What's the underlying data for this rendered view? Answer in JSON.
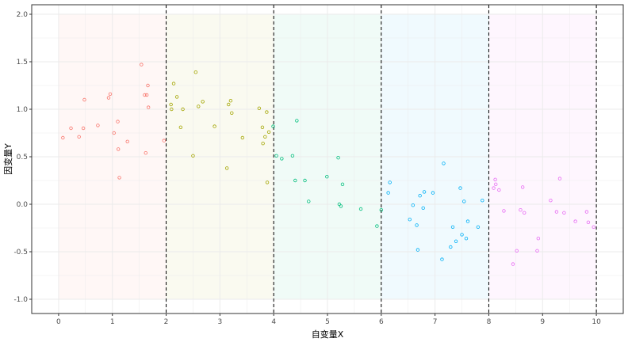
{
  "chart_data": {
    "type": "scatter",
    "title": "",
    "xlabel": "自变量X",
    "ylabel": "因变量Y",
    "xlim": [
      -0.5,
      10.5
    ],
    "ylim": [
      -1.15,
      2.1
    ],
    "x_ticks": [
      0,
      1,
      2,
      3,
      4,
      5,
      6,
      7,
      8,
      9,
      10
    ],
    "y_ticks": [
      -1.0,
      -0.5,
      0.0,
      0.5,
      1.0,
      1.5,
      2.0
    ],
    "y_tick_labels": [
      "-1.0",
      "-0.5",
      "0.0",
      "0.5",
      "1.0",
      "1.5",
      "2.0"
    ],
    "grid": true,
    "legend": "none",
    "vertical_dashed_lines": [
      2,
      4,
      6,
      8,
      10
    ],
    "region_fill_range_y": [
      -1,
      2
    ],
    "regions": [
      {
        "x_range": [
          0,
          2
        ],
        "color": "#F8766D"
      },
      {
        "x_range": [
          2,
          4
        ],
        "color": "#A3A500"
      },
      {
        "x_range": [
          4,
          6
        ],
        "color": "#00BF7D"
      },
      {
        "x_range": [
          6,
          8
        ],
        "color": "#00B0F6"
      },
      {
        "x_range": [
          8,
          10
        ],
        "color": "#E76BF3"
      }
    ],
    "series": [
      {
        "color": "#F8766D",
        "points": [
          [
            0.08,
            0.7
          ],
          [
            0.23,
            0.8
          ],
          [
            0.38,
            0.71
          ],
          [
            0.46,
            0.8
          ],
          [
            0.48,
            1.1
          ],
          [
            0.73,
            0.83
          ],
          [
            0.93,
            1.12
          ],
          [
            0.96,
            1.16
          ],
          [
            1.03,
            0.75
          ],
          [
            1.1,
            0.87
          ],
          [
            1.11,
            0.58
          ],
          [
            1.13,
            0.28
          ],
          [
            1.28,
            0.66
          ],
          [
            1.54,
            1.47
          ],
          [
            1.6,
            1.15
          ],
          [
            1.62,
            0.54
          ],
          [
            1.64,
            1.15
          ],
          [
            1.66,
            1.25
          ],
          [
            1.67,
            1.02
          ],
          [
            1.96,
            0.67
          ]
        ]
      },
      {
        "color": "#A3A500",
        "points": [
          [
            2.09,
            1.05
          ],
          [
            2.1,
            1.0
          ],
          [
            2.14,
            1.27
          ],
          [
            2.2,
            1.13
          ],
          [
            2.27,
            0.81
          ],
          [
            2.31,
            1.0
          ],
          [
            2.5,
            0.51
          ],
          [
            2.55,
            1.39
          ],
          [
            2.6,
            1.03
          ],
          [
            2.68,
            1.08
          ],
          [
            2.9,
            0.82
          ],
          [
            3.13,
            0.38
          ],
          [
            3.16,
            1.05
          ],
          [
            3.2,
            1.09
          ],
          [
            3.22,
            0.96
          ],
          [
            3.42,
            0.7
          ],
          [
            3.73,
            1.01
          ],
          [
            3.79,
            0.81
          ],
          [
            3.8,
            0.64
          ],
          [
            3.84,
            0.71
          ],
          [
            3.87,
            0.97
          ],
          [
            3.88,
            0.23
          ],
          [
            3.91,
            0.76
          ]
        ]
      },
      {
        "color": "#00BF7D",
        "points": [
          [
            3.99,
            0.82
          ],
          [
            4.05,
            0.51
          ],
          [
            4.15,
            0.48
          ],
          [
            4.35,
            0.51
          ],
          [
            4.4,
            0.25
          ],
          [
            4.43,
            0.88
          ],
          [
            4.58,
            0.25
          ],
          [
            4.65,
            0.03
          ],
          [
            4.99,
            0.29
          ],
          [
            5.2,
            0.49
          ],
          [
            5.22,
            0.0
          ],
          [
            5.25,
            -0.02
          ],
          [
            5.28,
            0.21
          ],
          [
            5.62,
            -0.05
          ],
          [
            5.92,
            -0.23
          ],
          [
            6.0,
            -0.06
          ]
        ]
      },
      {
        "color": "#00B0F6",
        "points": [
          [
            6.13,
            0.12
          ],
          [
            6.16,
            0.23
          ],
          [
            6.53,
            -0.16
          ],
          [
            6.59,
            -0.01
          ],
          [
            6.66,
            -0.22
          ],
          [
            6.68,
            -0.48
          ],
          [
            6.72,
            0.09
          ],
          [
            6.78,
            -0.04
          ],
          [
            6.8,
            0.13
          ],
          [
            6.96,
            0.12
          ],
          [
            7.13,
            -0.58
          ],
          [
            7.16,
            0.43
          ],
          [
            7.29,
            -0.45
          ],
          [
            7.33,
            -0.24
          ],
          [
            7.39,
            -0.39
          ],
          [
            7.47,
            0.17
          ],
          [
            7.5,
            -0.32
          ],
          [
            7.54,
            0.03
          ],
          [
            7.58,
            -0.36
          ],
          [
            7.61,
            -0.18
          ],
          [
            7.8,
            -0.24
          ],
          [
            7.88,
            0.04
          ]
        ]
      },
      {
        "color": "#E76BF3",
        "points": [
          [
            8.09,
            0.17
          ],
          [
            8.12,
            0.26
          ],
          [
            8.13,
            0.21
          ],
          [
            8.19,
            0.15
          ],
          [
            8.28,
            -0.07
          ],
          [
            8.45,
            -0.63
          ],
          [
            8.52,
            -0.49
          ],
          [
            8.59,
            -0.06
          ],
          [
            8.63,
            0.18
          ],
          [
            8.66,
            -0.09
          ],
          [
            8.9,
            -0.49
          ],
          [
            8.92,
            -0.36
          ],
          [
            9.15,
            0.04
          ],
          [
            9.26,
            -0.08
          ],
          [
            9.32,
            0.27
          ],
          [
            9.4,
            -0.09
          ],
          [
            9.61,
            -0.18
          ],
          [
            9.82,
            -0.08
          ],
          [
            9.85,
            -0.19
          ],
          [
            9.95,
            -0.24
          ]
        ]
      }
    ]
  }
}
